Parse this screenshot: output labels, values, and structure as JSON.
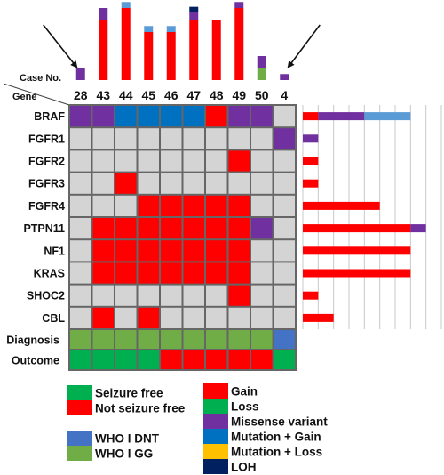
{
  "chart_data": {
    "type": "heatmap",
    "header": {
      "case_label": "Case No.",
      "gene_label": "Gene"
    },
    "cases": [
      "28",
      "43",
      "44",
      "45",
      "46",
      "47",
      "48",
      "49",
      "50",
      "4"
    ],
    "genes": [
      "BRAF",
      "FGFR1",
      "FGFR2",
      "FGFR3",
      "FGFR4",
      "PTPN11",
      "NF1",
      "KRAS",
      "SHOC2",
      "CBL"
    ],
    "matrix": [
      [
        "missense",
        "missense",
        "mut_gain",
        "mut_gain",
        "mut_gain",
        "mut_gain",
        "gain",
        "missense",
        "missense",
        null
      ],
      [
        null,
        null,
        null,
        null,
        null,
        null,
        null,
        null,
        null,
        "missense"
      ],
      [
        null,
        null,
        null,
        null,
        null,
        null,
        null,
        "gain",
        null,
        null
      ],
      [
        null,
        null,
        "gain",
        null,
        null,
        null,
        null,
        null,
        null,
        null
      ],
      [
        null,
        null,
        null,
        "gain",
        "gain",
        "gain",
        "gain",
        "gain",
        null,
        null
      ],
      [
        null,
        "gain",
        "gain",
        "gain",
        "gain",
        "gain",
        "gain",
        "gain",
        "missense",
        null
      ],
      [
        null,
        "gain",
        "gain",
        "gain",
        "gain",
        "gain",
        "gain",
        "gain",
        null,
        null
      ],
      [
        null,
        "gain",
        "gain",
        "gain",
        "gain",
        "gain",
        "gain",
        "gain",
        null,
        null
      ],
      [
        null,
        null,
        null,
        null,
        null,
        null,
        null,
        "gain",
        null,
        null
      ],
      [
        null,
        "gain",
        null,
        "gain",
        null,
        null,
        null,
        null,
        null,
        null
      ]
    ],
    "case_totals": [
      {
        "gain": 0,
        "loss": 0,
        "missense": 1,
        "mut_gain": 0,
        "mut_loss": 0,
        "loh": 0
      },
      {
        "gain": 5,
        "loss": 0,
        "missense": 1,
        "mut_gain": 0,
        "mut_loss": 0,
        "loh": 0
      },
      {
        "gain": 6,
        "loss": 0,
        "missense": 0,
        "mut_gain": 0.5,
        "mut_loss": 0,
        "loh": 0
      },
      {
        "gain": 4,
        "loss": 0,
        "missense": 0,
        "mut_gain": 0.5,
        "mut_loss": 0,
        "loh": 0
      },
      {
        "gain": 4,
        "loss": 0,
        "missense": 0,
        "mut_gain": 0.5,
        "mut_loss": 0,
        "loh": 0
      },
      {
        "gain": 5,
        "loss": 0,
        "missense": 0.7,
        "mut_gain": 0,
        "mut_loss": 0,
        "loh": 0.4
      },
      {
        "gain": 5,
        "loss": 0,
        "missense": 0,
        "mut_gain": 0,
        "mut_loss": 0,
        "loh": 0
      },
      {
        "gain": 6,
        "loss": 0,
        "missense": 0.5,
        "mut_gain": 0,
        "mut_loss": 0,
        "loh": 0
      },
      {
        "gain": 0,
        "loss": 1,
        "missense": 1,
        "mut_gain": 0,
        "mut_loss": 0,
        "loh": 0
      },
      {
        "gain": 0,
        "loss": 0,
        "missense": 0.5,
        "mut_gain": 0,
        "mut_loss": 0,
        "loh": 0
      }
    ],
    "gene_totals": [
      {
        "gain": 1,
        "missense": 3,
        "mut_gain": 3
      },
      {
        "missense": 1
      },
      {
        "gain": 1
      },
      {
        "gain": 1
      },
      {
        "gain": 5
      },
      {
        "gain": 7,
        "missense": 1
      },
      {
        "gain": 7
      },
      {
        "gain": 7
      },
      {
        "gain": 1
      },
      {
        "gain": 2
      }
    ],
    "gene_axis_max": 9,
    "arrows_at_cases": [
      "28",
      "4"
    ],
    "diagnosis": {
      "label": "Diagnosis",
      "values": [
        "gg",
        "gg",
        "gg",
        "gg",
        "gg",
        "gg",
        "gg",
        "gg",
        "gg",
        "dnt"
      ]
    },
    "outcome": {
      "label": "Outcome",
      "values": [
        "free",
        "free",
        "free",
        "free",
        "not_free",
        "not_free",
        "not_free",
        "not_free",
        "not_free",
        "free"
      ]
    },
    "legend_left": [
      {
        "key": "free",
        "label": "Seizure free"
      },
      {
        "key": "not_free",
        "label": "Not seizure free"
      },
      {
        "key": "dnt",
        "label": "WHO I DNT"
      },
      {
        "key": "gg",
        "label": "WHO I GG"
      }
    ],
    "legend_right": [
      {
        "key": "gain",
        "label": "Gain"
      },
      {
        "key": "loss",
        "label": "Loss"
      },
      {
        "key": "missense",
        "label": "Missense variant"
      },
      {
        "key": "mut_gain",
        "label": "Mutation + Gain"
      },
      {
        "key": "mut_loss",
        "label": "Mutation + Loss"
      },
      {
        "key": "loh",
        "label": "LOH"
      }
    ],
    "colors": {
      "empty": "#d4d4d4",
      "gain": "#ff0000",
      "loss": "#00b050",
      "missense": "#7030a0",
      "mut_gain": "#0070c0",
      "mut_loss": "#ffc000",
      "loh": "#002060",
      "free": "#00b050",
      "not_free": "#ff0000",
      "dnt": "#4472c4",
      "gg": "#70ad47",
      "top_gain": "#ff0000",
      "top_missense": "#7030a0",
      "top_mut_gain": "#5b9bd5",
      "top_loss": "#70ad47",
      "top_loh": "#002060",
      "arrow": "#111111",
      "bar_grid": "#c8c8c8"
    }
  }
}
